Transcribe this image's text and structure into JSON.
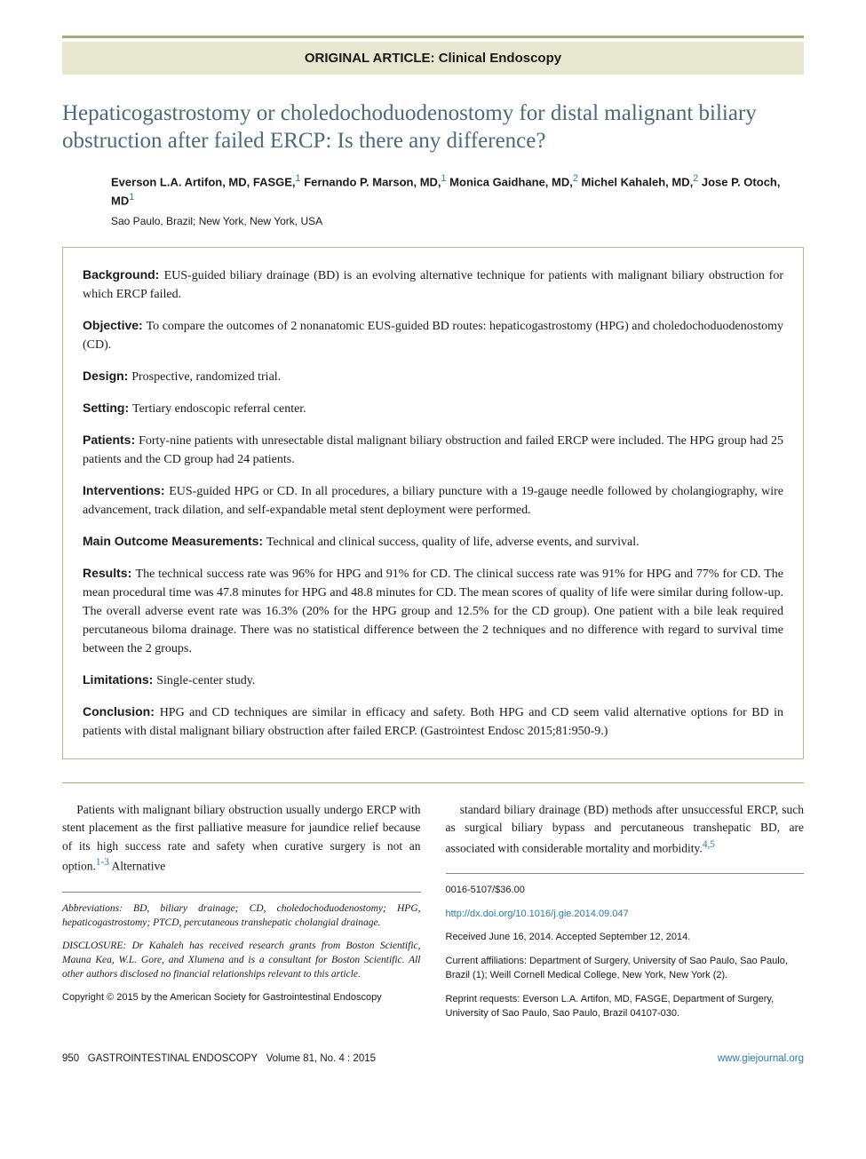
{
  "category": "ORIGINAL ARTICLE: Clinical Endoscopy",
  "title": "Hepaticogastrostomy or choledochoduodenostomy for distal malignant biliary obstruction after failed ERCP: Is there any difference?",
  "authors_html": "Everson L.A. Artifon, MD, FASGE,<sup>1</sup> Fernando P. Marson, MD,<sup>1</sup> Monica Gaidhane, MD,<sup>2</sup> Michel Kahaleh, MD,<sup>2</sup> Jose P. Otoch, MD<sup>1</sup>",
  "locations": "Sao Paulo, Brazil; New York, New York, USA",
  "abstract": [
    {
      "label": "Background:",
      "text": "EUS-guided biliary drainage (BD) is an evolving alternative technique for patients with malignant biliary obstruction for which ERCP failed."
    },
    {
      "label": "Objective:",
      "text": "To compare the outcomes of 2 nonanatomic EUS-guided BD routes: hepaticogastrostomy (HPG) and choledochoduodenostomy (CD)."
    },
    {
      "label": "Design:",
      "text": "Prospective, randomized trial."
    },
    {
      "label": "Setting:",
      "text": "Tertiary endoscopic referral center."
    },
    {
      "label": "Patients:",
      "text": "Forty-nine patients with unresectable distal malignant biliary obstruction and failed ERCP were included. The HPG group had 25 patients and the CD group had 24 patients."
    },
    {
      "label": "Interventions:",
      "text": "EUS-guided HPG or CD. In all procedures, a biliary puncture with a 19-gauge needle followed by cholangiography, wire advancement, track dilation, and self-expandable metal stent deployment were performed."
    },
    {
      "label": "Main Outcome Measurements:",
      "text": "Technical and clinical success, quality of life, adverse events, and survival."
    },
    {
      "label": "Results:",
      "text": "The technical success rate was 96% for HPG and 91% for CD. The clinical success rate was 91% for HPG and 77% for CD. The mean procedural time was 47.8 minutes for HPG and 48.8 minutes for CD. The mean scores of quality of life were similar during follow-up. The overall adverse event rate was 16.3% (20% for the HPG group and 12.5% for the CD group). One patient with a bile leak required percutaneous biloma drainage. There was no statistical difference between the 2 techniques and no difference with regard to survival time between the 2 groups."
    },
    {
      "label": "Limitations:",
      "text": "Single-center study."
    },
    {
      "label": "Conclusion:",
      "text": "HPG and CD techniques are similar in efficacy and safety. Both HPG and CD seem valid alternative options for BD in patients with distal malignant biliary obstruction after failed ERCP. (Gastrointest Endosc 2015;81:950-9.)"
    }
  ],
  "body_left": "Patients with malignant biliary obstruction usually undergo ERCP with stent placement as the first palliative measure for jaundice relief because of its high success rate and safety when curative surgery is not an option.<sup><a>1-3</a></sup> Alternative",
  "body_right": "standard biliary drainage (BD) methods after unsuccessful ERCP, such as surgical biliary bypass and percutaneous transhepatic BD, are associated with considerable mortality and morbidity.<sup><a>4,5</a></sup>",
  "abbrev": "Abbreviations: BD, biliary drainage; CD, choledochoduodenostomy; HPG, hepaticogastrostomy; PTCD, percutaneous transhepatic cholangial drainage.",
  "disclosure": "DISCLOSURE: Dr Kahaleh has received research grants from Boston Scientific, Mauna Kea, W.L. Gore, and Xlumena and is a consultant for Boston Scientific. All other authors disclosed no financial relationships relevant to this article.",
  "copyright": "Copyright © 2015 by the American Society for Gastrointestinal Endoscopy",
  "issn": "0016-5107/$36.00",
  "doi": "http://dx.doi.org/10.1016/j.gie.2014.09.047",
  "received": "Received June 16, 2014. Accepted September 12, 2014.",
  "affiliations": "Current affiliations: Department of Surgery, University of Sao Paulo, Sao Paulo, Brazil (1); Weill Cornell Medical College, New York, New York (2).",
  "reprint": "Reprint requests: Everson L.A. Artifon, MD, FASGE, Department of Surgery, University of Sao Paulo, Sao Paulo, Brazil 04107-030.",
  "footer_left": "950   GASTROINTESTINAL ENDOSCOPY   Volume 81, No. 4 : 2015",
  "footer_right": "www.giejournal.org",
  "colors": {
    "accent": "#4a6a7a",
    "band": "#e8e8d0",
    "rule": "#a8a87a",
    "link": "#2a7ab0"
  }
}
